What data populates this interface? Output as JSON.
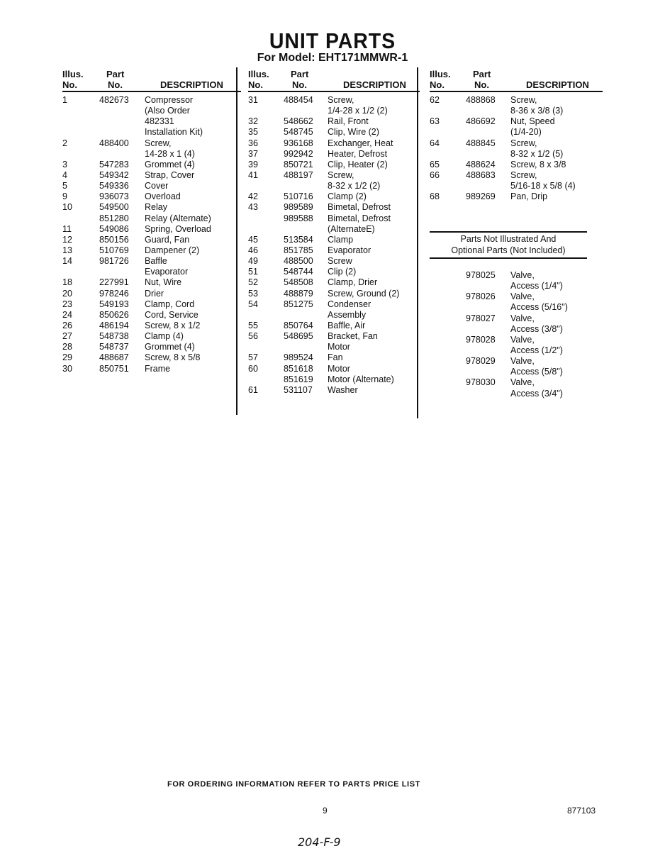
{
  "title": "UNIT PARTS",
  "subtitle": "For Model: EHT171MMWR-1",
  "headers": {
    "illus_1": "Illus.",
    "illus_2": "No.",
    "part_1": "Part",
    "part_2": "No.",
    "description": "DESCRIPTION"
  },
  "columns": [
    {
      "rows": [
        {
          "illus": "1",
          "part": "482673",
          "desc": [
            "Compressor",
            "(Also Order",
            "482331",
            "Installation Kit)"
          ]
        },
        {
          "illus": "2",
          "part": "488400",
          "desc": [
            "Screw,",
            "14-28 x 1 (4)"
          ]
        },
        {
          "illus": "3",
          "part": "547283",
          "desc": [
            "Grommet (4)"
          ]
        },
        {
          "illus": "4",
          "part": "549342",
          "desc": [
            "Strap, Cover"
          ]
        },
        {
          "illus": "5",
          "part": "549336",
          "desc": [
            "Cover"
          ]
        },
        {
          "illus": "9",
          "part": "936073",
          "desc": [
            "Overload"
          ]
        },
        {
          "illus": "10",
          "part": "549500",
          "desc": [
            "Relay"
          ]
        },
        {
          "illus": "",
          "part": "851280",
          "desc": [
            "Relay (Alternate)"
          ]
        },
        {
          "illus": "11",
          "part": "549086",
          "desc": [
            "Spring, Overload"
          ]
        },
        {
          "illus": "12",
          "part": "850156",
          "desc": [
            "Guard, Fan"
          ]
        },
        {
          "illus": "13",
          "part": "510769",
          "desc": [
            "Dampener (2)"
          ]
        },
        {
          "illus": "14",
          "part": "981726",
          "desc": [
            "Baffle",
            "Evaporator"
          ]
        },
        {
          "illus": "18",
          "part": "227991",
          "desc": [
            "Nut, Wire"
          ]
        },
        {
          "illus": "20",
          "part": "978246",
          "desc": [
            "Drier"
          ]
        },
        {
          "illus": "23",
          "part": "549193",
          "desc": [
            "Clamp, Cord"
          ]
        },
        {
          "illus": "24",
          "part": "850626",
          "desc": [
            "Cord, Service"
          ]
        },
        {
          "illus": "26",
          "part": "486194",
          "desc": [
            "Screw, 8 x 1/2"
          ]
        },
        {
          "illus": "27",
          "part": "548738",
          "desc": [
            "Clamp (4)"
          ]
        },
        {
          "illus": "28",
          "part": "548737",
          "desc": [
            "Grommet (4)"
          ]
        },
        {
          "illus": "29",
          "part": "488687",
          "desc": [
            "Screw, 8 x 5/8"
          ]
        },
        {
          "illus": "30",
          "part": "850751",
          "desc": [
            "Frame"
          ]
        }
      ]
    },
    {
      "rows": [
        {
          "illus": "31",
          "part": "488454",
          "desc": [
            "Screw,",
            "1/4-28 x 1/2 (2)"
          ]
        },
        {
          "illus": "32",
          "part": "548662",
          "desc": [
            "Rail, Front"
          ]
        },
        {
          "illus": "35",
          "part": "548745",
          "desc": [
            "Clip, Wire (2)"
          ]
        },
        {
          "illus": "36",
          "part": "936168",
          "desc": [
            "Exchanger, Heat"
          ]
        },
        {
          "illus": "37",
          "part": "992942",
          "desc": [
            "Heater, Defrost"
          ]
        },
        {
          "illus": "39",
          "part": "850721",
          "desc": [
            "Clip, Heater (2)"
          ]
        },
        {
          "illus": "41",
          "part": "488197",
          "desc": [
            "Screw,",
            "8-32 x 1/2 (2)"
          ]
        },
        {
          "illus": "42",
          "part": "510716",
          "desc": [
            "Clamp (2)"
          ]
        },
        {
          "illus": "43",
          "part": "989589",
          "desc": [
            "Bimetal, Defrost"
          ]
        },
        {
          "illus": "",
          "part": "989588",
          "desc": [
            "Bimetal, Defrost",
            "(AlternateE)"
          ]
        },
        {
          "illus": "45",
          "part": "513584",
          "desc": [
            "Clamp"
          ]
        },
        {
          "illus": "46",
          "part": "851785",
          "desc": [
            "Evaporator"
          ]
        },
        {
          "illus": "49",
          "part": "488500",
          "desc": [
            "Screw"
          ]
        },
        {
          "illus": "51",
          "part": "548744",
          "desc": [
            "Clip (2)"
          ]
        },
        {
          "illus": "52",
          "part": "548508",
          "desc": [
            "Clamp, Drier"
          ]
        },
        {
          "illus": "53",
          "part": "488879",
          "desc": [
            "Screw, Ground (2)"
          ]
        },
        {
          "illus": "54",
          "part": "851275",
          "desc": [
            "Condenser",
            "Assembly"
          ]
        },
        {
          "illus": "55",
          "part": "850764",
          "desc": [
            "Baffle, Air"
          ]
        },
        {
          "illus": "56",
          "part": "548695",
          "desc": [
            "Bracket, Fan",
            "Motor"
          ]
        },
        {
          "illus": "57",
          "part": "989524",
          "desc": [
            "Fan"
          ]
        },
        {
          "illus": "60",
          "part": "851618",
          "desc": [
            "Motor"
          ]
        },
        {
          "illus": "",
          "part": "851619",
          "desc": [
            "Motor (Alternate)"
          ]
        },
        {
          "illus": "61",
          "part": "531107",
          "desc": [
            "Washer"
          ]
        }
      ]
    },
    {
      "rows": [
        {
          "illus": "62",
          "part": "488868",
          "desc": [
            "Screw,",
            "8-36 x 3/8 (3)"
          ]
        },
        {
          "illus": "63",
          "part": "486692",
          "desc": [
            "Nut, Speed",
            "(1/4-20)"
          ]
        },
        {
          "illus": "64",
          "part": "488845",
          "desc": [
            "Screw,",
            "8-32 x 1/2 (5)"
          ]
        },
        {
          "illus": "65",
          "part": "488624",
          "desc": [
            "Screw, 8 x 3/8"
          ]
        },
        {
          "illus": "66",
          "part": "488683",
          "desc": [
            "Screw,",
            "5/16-18 x 5/8 (4)"
          ]
        },
        {
          "illus": "68",
          "part": "989269",
          "desc": [
            "Pan, Drip"
          ]
        }
      ]
    }
  ],
  "not_illustrated": {
    "heading": [
      "Parts Not Illustrated And",
      "Optional Parts (Not Included)"
    ],
    "rows": [
      {
        "part": "978025",
        "desc": [
          "Valve,",
          "Access (1/4\")"
        ]
      },
      {
        "part": "978026",
        "desc": [
          "Valve,",
          "Access (5/16\")"
        ]
      },
      {
        "part": "978027",
        "desc": [
          "Valve,",
          "Access (3/8\")"
        ]
      },
      {
        "part": "978028",
        "desc": [
          "Valve,",
          "Access (1/2\")"
        ]
      },
      {
        "part": "978029",
        "desc": [
          "Valve,",
          "Access (5/8\")"
        ]
      },
      {
        "part": "978030",
        "desc": [
          "Valve,",
          "Access (3/4\")"
        ]
      }
    ]
  },
  "footer": {
    "ordering_note": "FOR ORDERING INFORMATION REFER TO PARTS PRICE LIST",
    "page_number": "9",
    "document_number": "877103",
    "handwritten_note": "204-F-9"
  }
}
